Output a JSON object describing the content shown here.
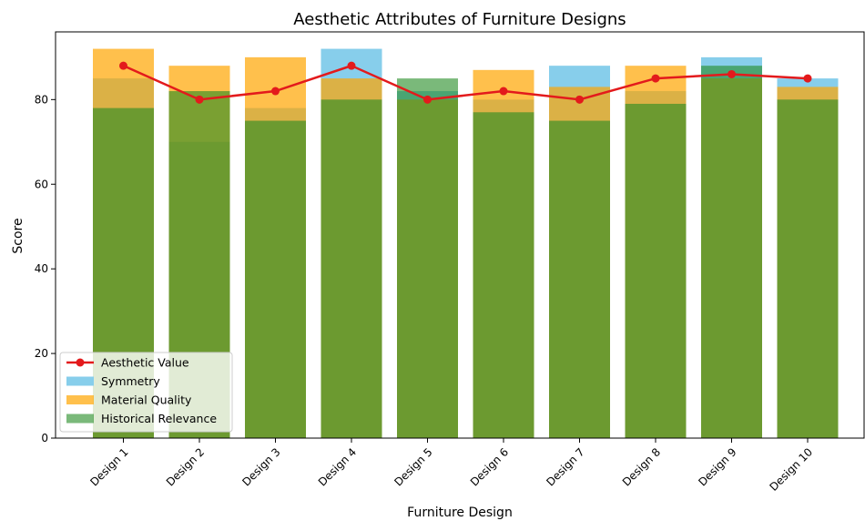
{
  "chart_data": {
    "type": "bar",
    "title": "Aesthetic Attributes of Furniture Designs",
    "xlabel": "Furniture Design",
    "ylabel": "Score",
    "ylim": [
      0,
      96
    ],
    "yticks": [
      0,
      20,
      40,
      60,
      80
    ],
    "grid": false,
    "legend_position": "bottom-left",
    "categories": [
      "Design 1",
      "Design 2",
      "Design 3",
      "Design 4",
      "Design 5",
      "Design 6",
      "Design 7",
      "Design 8",
      "Design 9",
      "Design 10"
    ],
    "series": [
      {
        "name": "Symmetry",
        "type": "bar",
        "color": "#87ceeb",
        "opacity": 1.0,
        "values": [
          85,
          70,
          78,
          92,
          82,
          80,
          88,
          82,
          90,
          85
        ]
      },
      {
        "name": "Material Quality",
        "type": "bar",
        "color": "#ffa500",
        "opacity": 0.7,
        "values": [
          92,
          88,
          90,
          85,
          80,
          87,
          83,
          88,
          85,
          83
        ]
      },
      {
        "name": "Historical Relevance",
        "type": "bar",
        "color": "#228b22",
        "opacity": 0.6,
        "values": [
          78,
          82,
          75,
          80,
          85,
          77,
          75,
          79,
          88,
          80
        ]
      },
      {
        "name": "Aesthetic Value",
        "type": "line",
        "color": "#e31a1c",
        "values": [
          88,
          80,
          82,
          88,
          80,
          82,
          80,
          85,
          86,
          85
        ]
      }
    ]
  }
}
